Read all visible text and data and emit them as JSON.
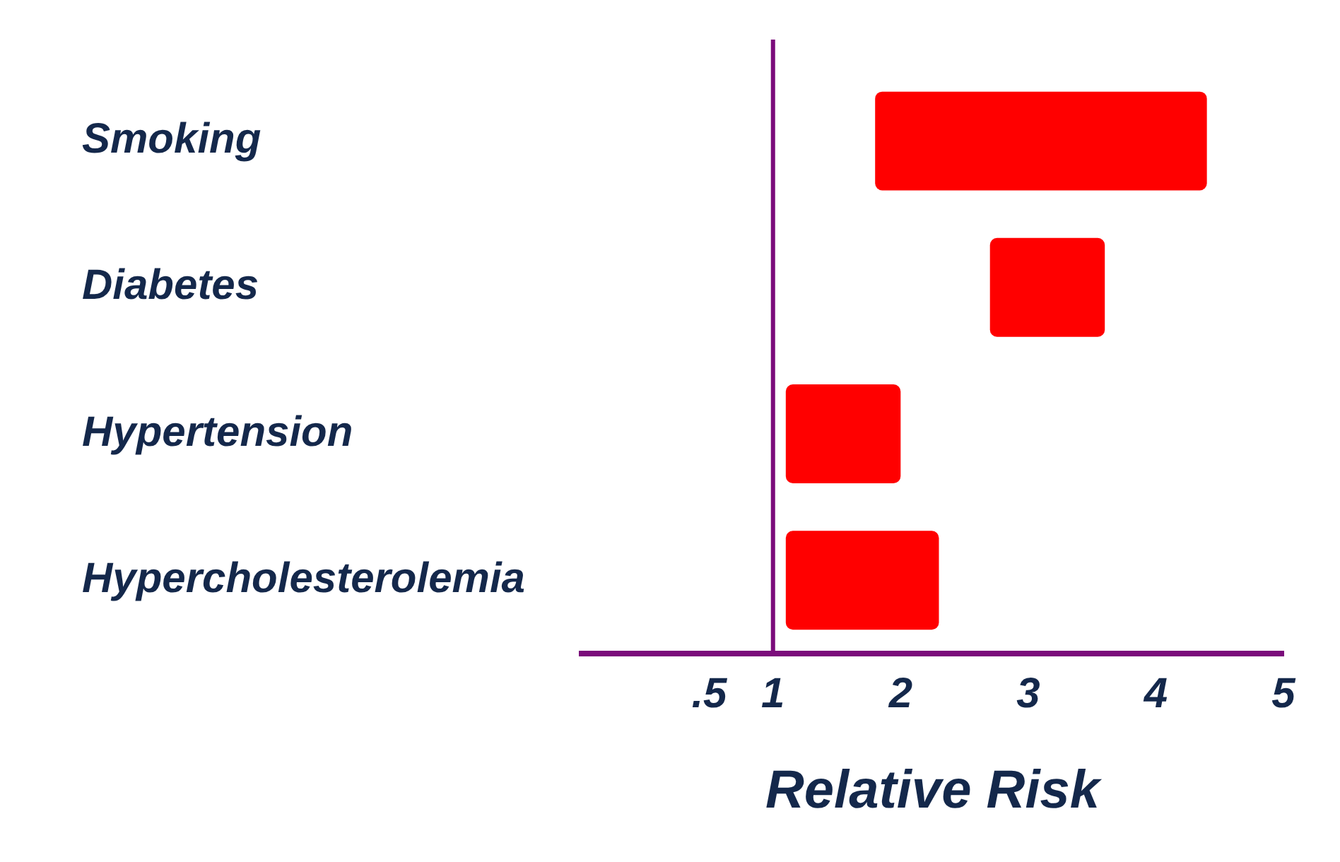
{
  "chart_data": {
    "type": "bar",
    "orientation": "horizontal",
    "xlabel": "Relative Risk",
    "categories": [
      "Smoking",
      "Diabetes",
      "Hypertension",
      "Hypercholesterolemia"
    ],
    "base": [
      1.8,
      2.7,
      1.1,
      1.1
    ],
    "values": [
      2.6,
      0.9,
      0.9,
      1.2
    ],
    "color": "#ff0000",
    "xlim": [
      -0.5,
      5
    ],
    "xticks": [
      {
        "value": 0.5,
        "label": ".5"
      },
      1,
      2,
      3,
      4,
      5
    ],
    "grid": false,
    "legend": false,
    "ref_lines": [
      {
        "axis": "x",
        "value": 1,
        "color": "#7b0c7b"
      }
    ]
  }
}
